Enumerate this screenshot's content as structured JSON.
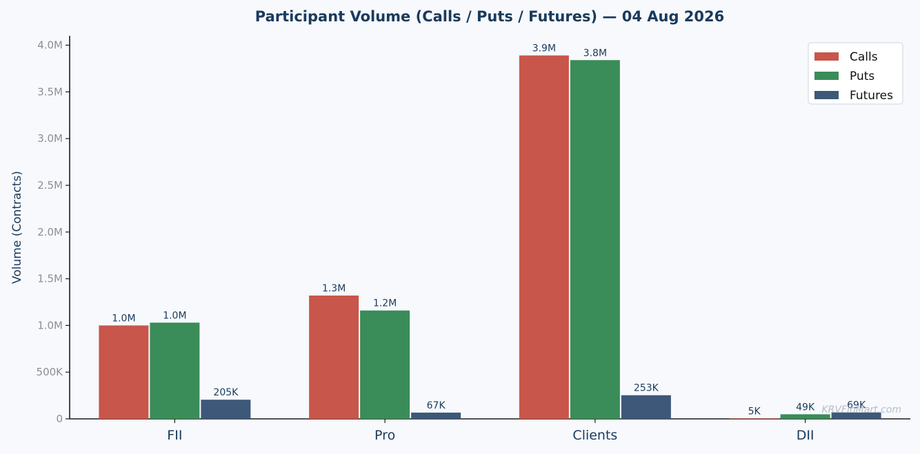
{
  "chart_data": {
    "type": "bar",
    "title": "Participant Volume (Calls / Puts / Futures) — 04 Aug 2026",
    "xlabel": "",
    "ylabel": "Volume (Contracts)",
    "categories": [
      "FII",
      "Pro",
      "Clients",
      "DII"
    ],
    "series": [
      {
        "name": "Calls",
        "color": "#c8564a",
        "values": [
          1000000,
          1320000,
          3890000,
          5000
        ],
        "labels": [
          "1.0M",
          "1.3M",
          "3.9M",
          "5K"
        ]
      },
      {
        "name": "Puts",
        "color": "#3a8c58",
        "values": [
          1030000,
          1160000,
          3840000,
          49000
        ],
        "labels": [
          "1.0M",
          "1.2M",
          "3.8M",
          "49K"
        ]
      },
      {
        "name": "Futures",
        "color": "#3d5878",
        "values": [
          205000,
          67000,
          253000,
          69000
        ],
        "labels": [
          "205K",
          "67K",
          "253K",
          "69K"
        ]
      }
    ],
    "ylim": [
      0,
      4100000
    ],
    "yticks": [
      0,
      500000,
      1000000,
      1500000,
      2000000,
      2500000,
      3000000,
      3500000,
      4000000
    ],
    "ytick_labels": [
      "0",
      "500K",
      "1.0M",
      "1.5M",
      "2.0M",
      "2.5M",
      "3.0M",
      "3.5M",
      "4.0M"
    ],
    "grid": false,
    "legend_position": "top-right"
  },
  "watermark": "KRVFinMart.com",
  "colors": {
    "background": "#f7f9fc",
    "axis": "#1a1a1a",
    "title": "#1a3a5c"
  }
}
